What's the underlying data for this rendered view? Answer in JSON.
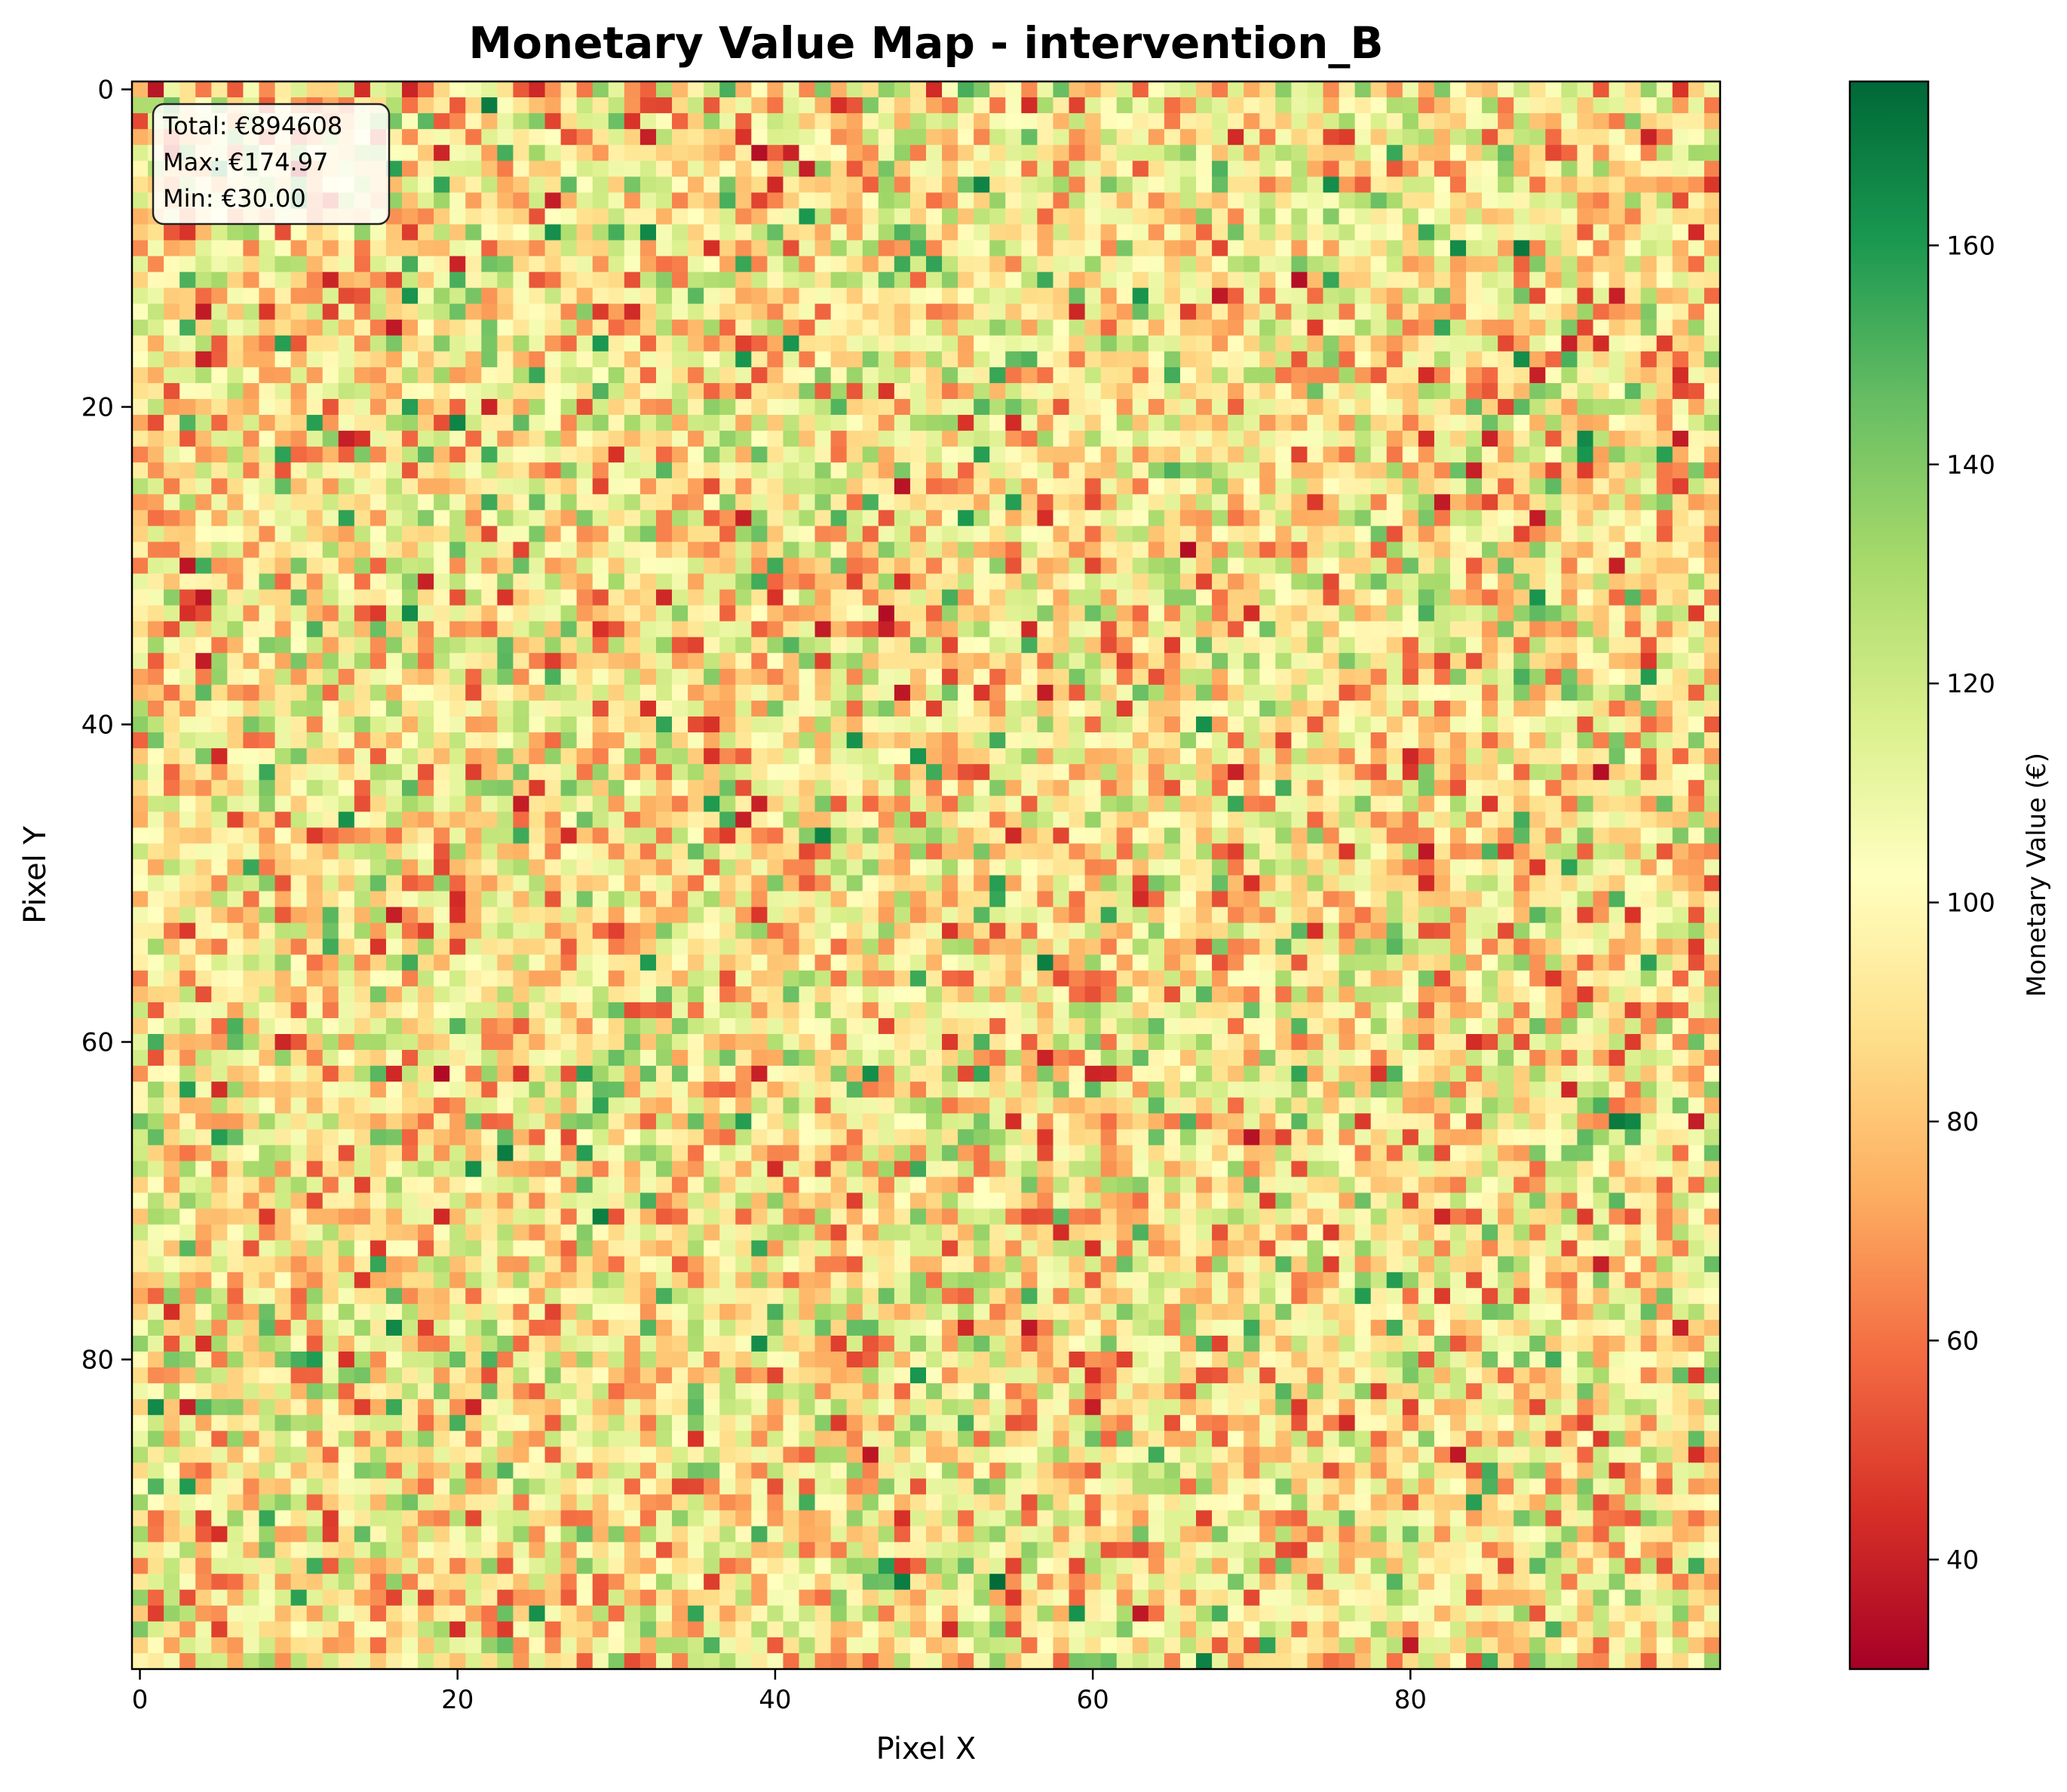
{
  "chart_data": {
    "type": "heatmap",
    "title": "Monetary Value Map - intervention_B",
    "xlabel": "Pixel X",
    "ylabel": "Pixel Y",
    "grid": false,
    "xlim": [
      -0.5,
      99.5
    ],
    "ylim": [
      99.5,
      -0.5
    ],
    "rows": 100,
    "cols": 100,
    "x_ticks": [
      0,
      20,
      40,
      60,
      80
    ],
    "x_tick_labels": [
      "0",
      "20",
      "40",
      "60",
      "80"
    ],
    "y_ticks": [
      0,
      20,
      40,
      60,
      80
    ],
    "y_tick_labels": [
      "0",
      "20",
      "40",
      "60",
      "80"
    ],
    "value_range": [
      30.0,
      174.97
    ],
    "colormap": "RdYlGn",
    "colormap_stops": [
      "#a50026",
      "#d73027",
      "#f46d43",
      "#fdae61",
      "#fee08b",
      "#ffffbf",
      "#d9ef8b",
      "#a6d96a",
      "#66bd63",
      "#1a9850",
      "#006837"
    ],
    "colorbar": {
      "label": "Monetary Value (€)",
      "ticks": [
        40,
        60,
        80,
        100,
        120,
        140,
        160
      ],
      "tick_labels": [
        "40",
        "60",
        "80",
        "100",
        "120",
        "140",
        "160"
      ],
      "placement": "right"
    },
    "annotation": {
      "placement": "top-left",
      "lines": [
        "Total: €894608",
        "Max: €174.97",
        "Min: €30.00"
      ]
    }
  }
}
